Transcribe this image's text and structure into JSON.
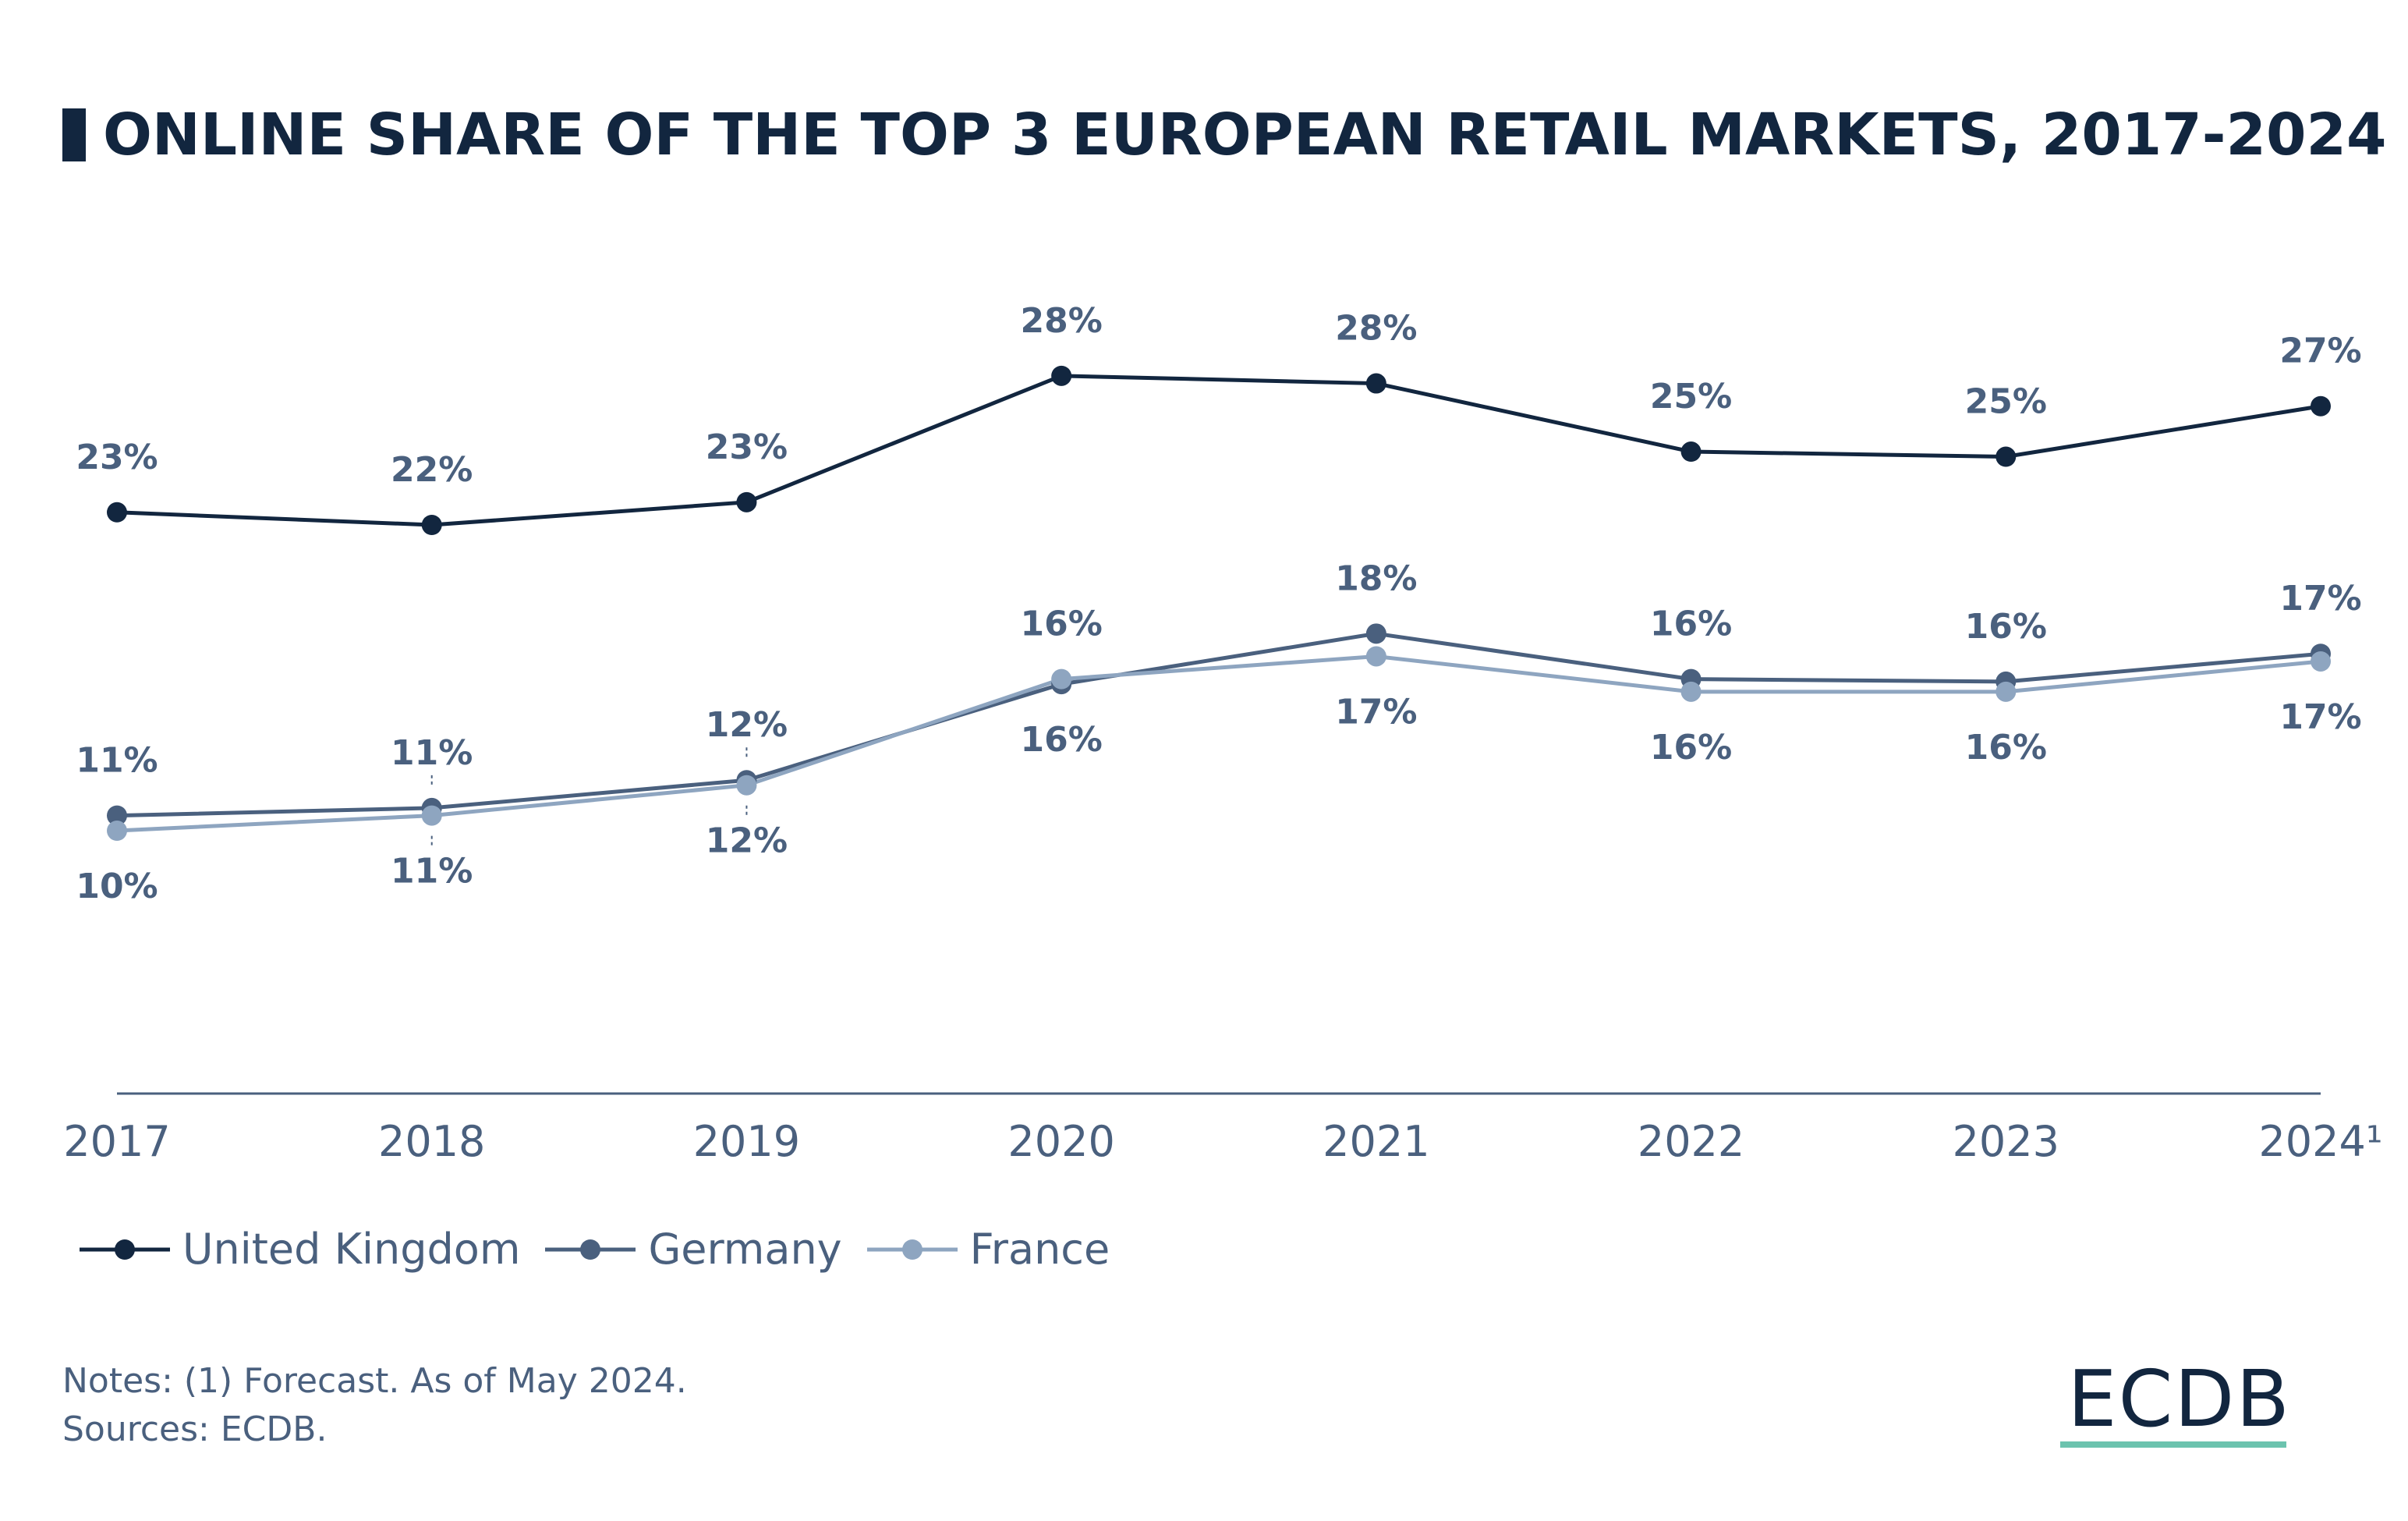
{
  "title": "ONLINE SHARE OF THE TOP 3 EUROPEAN RETAIL MARKETS, 2017-2024",
  "notes": [
    "Notes: (1) Forecast. As of May 2024.",
    "Sources: ECDB."
  ],
  "logo": "ECDB",
  "colors": {
    "title": "#12263f",
    "label": "#4a607e",
    "logo_accent": "#6cc3ae"
  },
  "chart_data": {
    "type": "line",
    "title": "ONLINE SHARE OF THE TOP 3 EUROPEAN RETAIL MARKETS, 2017-2024",
    "categories": [
      "2017",
      "2018",
      "2019",
      "2020",
      "2021",
      "2022",
      "2023",
      "2024¹"
    ],
    "ylim": [
      0,
      30
    ],
    "grid": false,
    "legend_placement": "bottom-left",
    "series": [
      {
        "name": "United Kingdom",
        "color": "#12263f",
        "values": [
          23.0,
          22.5,
          23.4,
          28.4,
          28.1,
          25.4,
          25.2,
          27.2
        ],
        "labels": [
          "23%",
          "22%",
          "23%",
          "28%",
          "28%",
          "25%",
          "25%",
          "27%"
        ]
      },
      {
        "name": "Germany",
        "color": "#4a607e",
        "values": [
          11.0,
          11.3,
          12.4,
          16.2,
          18.2,
          16.4,
          16.3,
          17.4
        ],
        "labels": [
          "11%",
          "11%",
          "12%",
          "16%",
          "18%",
          "16%",
          "16%",
          "17%"
        ]
      },
      {
        "name": "France",
        "color": "#8ea5c0",
        "values": [
          10.4,
          11.0,
          12.2,
          16.4,
          17.3,
          15.9,
          15.9,
          17.1
        ],
        "labels": [
          "10%",
          "11%",
          "12%",
          "16%",
          "17%",
          "16%",
          "16%",
          "17%"
        ]
      }
    ]
  }
}
